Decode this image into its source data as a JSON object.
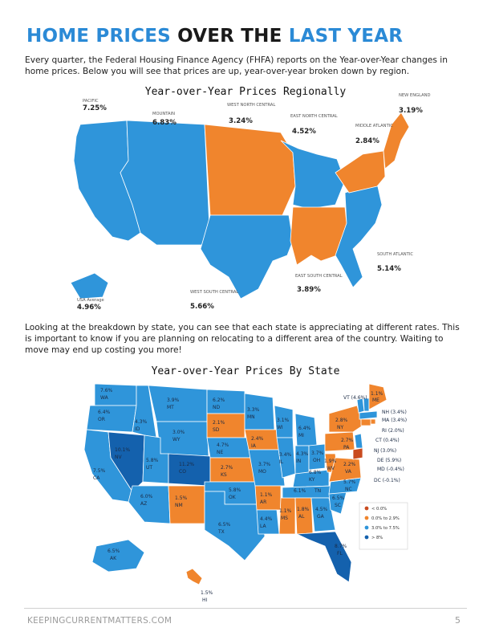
{
  "title": {
    "part1": "HOME PRICES",
    "part2": " OVER THE ",
    "part3": "LAST YEAR"
  },
  "intro": "Every quarter, the Federal Housing Finance Agency (FHFA) reports on the Year-over-Year changes in home prices. Below you will see that prices are up, year-over-year broken down by region.",
  "regional": {
    "title": "Year-over-Year Prices Regionally",
    "regions": [
      {
        "name": "PACIFIC",
        "value": "7.25%"
      },
      {
        "name": "MOUNTAIN",
        "value": "6.83%"
      },
      {
        "name": "WEST NORTH CENTRAL",
        "value": "3.24%"
      },
      {
        "name": "EAST NORTH CENTRAL",
        "value": "4.52%"
      },
      {
        "name": "MIDDLE ATLANTIC",
        "value": "2.84%"
      },
      {
        "name": "NEW ENGLAND",
        "value": "3.19%"
      },
      {
        "name": "SOUTH ATLANTIC",
        "value": "5.14%"
      },
      {
        "name": "EAST SOUTH CENTRAL",
        "value": "3.89%"
      },
      {
        "name": "WEST SOUTH CENTRAL",
        "value": "5.66%"
      },
      {
        "name": "USA Average",
        "value": "4.96%"
      }
    ]
  },
  "state_text": "Looking at the breakdown by state, you can see that each state is appreciating at different rates. This is important to know if you are planning on relocating to a different area of the country. Waiting to move may end up costing you more!",
  "state_map": {
    "title": "Year-over-Year Prices By State",
    "states": [
      {
        "abbr": "WA",
        "value": "7.6%"
      },
      {
        "abbr": "OR",
        "value": "6.4%"
      },
      {
        "abbr": "CA",
        "value": "7.5%"
      },
      {
        "abbr": "NV",
        "value": "10.1%"
      },
      {
        "abbr": "ID",
        "value": "4.3%"
      },
      {
        "abbr": "MT",
        "value": "3.9%"
      },
      {
        "abbr": "WY",
        "value": "3.0%"
      },
      {
        "abbr": "UT",
        "value": "5.8%"
      },
      {
        "abbr": "CO",
        "value": "11.2%"
      },
      {
        "abbr": "AZ",
        "value": "6.0%"
      },
      {
        "abbr": "NM",
        "value": "1.5%"
      },
      {
        "abbr": "ND",
        "value": "6.2%"
      },
      {
        "abbr": "SD",
        "value": "2.1%"
      },
      {
        "abbr": "NE",
        "value": "4.7%"
      },
      {
        "abbr": "KS",
        "value": "2.7%"
      },
      {
        "abbr": "OK",
        "value": "5.8%"
      },
      {
        "abbr": "TX",
        "value": "6.5%"
      },
      {
        "abbr": "MN",
        "value": "3.3%"
      },
      {
        "abbr": "IA",
        "value": "2.4%"
      },
      {
        "abbr": "MO",
        "value": "3.7%"
      },
      {
        "abbr": "AR",
        "value": "1.1%"
      },
      {
        "abbr": "LA",
        "value": "4.4%"
      },
      {
        "abbr": "WI",
        "value": "3.1%"
      },
      {
        "abbr": "IL",
        "value": "3.4%"
      },
      {
        "abbr": "MS",
        "value": "1.1%"
      },
      {
        "abbr": "MI",
        "value": "6.4%"
      },
      {
        "abbr": "IN",
        "value": "4.3%"
      },
      {
        "abbr": "KY",
        "value": "6.8%"
      },
      {
        "abbr": "TN",
        "value": "6.1%"
      },
      {
        "abbr": "AL",
        "value": "1.8%"
      },
      {
        "abbr": "OH",
        "value": "3.7%"
      },
      {
        "abbr": "GA",
        "value": "4.5%"
      },
      {
        "abbr": "FL",
        "value": "8.7%"
      },
      {
        "abbr": "SC",
        "value": "6.5%"
      },
      {
        "abbr": "NC",
        "value": "5.7%"
      },
      {
        "abbr": "VA",
        "value": "2.2%"
      },
      {
        "abbr": "WV",
        "value": "1.9%"
      },
      {
        "abbr": "PA",
        "value": "2.7%"
      },
      {
        "abbr": "NY",
        "value": "2.8%"
      },
      {
        "abbr": "ME",
        "value": "1.1%"
      },
      {
        "abbr": "AK",
        "value": "6.5%"
      },
      {
        "abbr": "HI",
        "value": "1.5%"
      }
    ],
    "callouts": [
      "VT (4.6%)",
      "NH (3.4%)",
      "MA (3.4%)",
      "RI (2.0%)",
      "CT (0.4%)",
      "NJ (3.0%)",
      "DE (5.9%)",
      "MD (-0.4%)",
      "DC (-0.1%)"
    ],
    "legend": [
      {
        "label": "< 0.0%",
        "color": "#c94b1f"
      },
      {
        "label": "0.0% to 2.9%",
        "color": "#f0852d"
      },
      {
        "label": "3.0% to 7.5%",
        "color": "#2f95da"
      },
      {
        "label": "> 8%",
        "color": "#1461ad"
      }
    ]
  },
  "colors": {
    "blue": "#2f95da",
    "orange": "#f0852d",
    "dark_blue": "#1461ad",
    "red": "#c94b1f",
    "title_blue": "#2b8ad6"
  },
  "footer": {
    "source": "KEEPINGCURRENTMATTERS.COM",
    "page": "5"
  }
}
